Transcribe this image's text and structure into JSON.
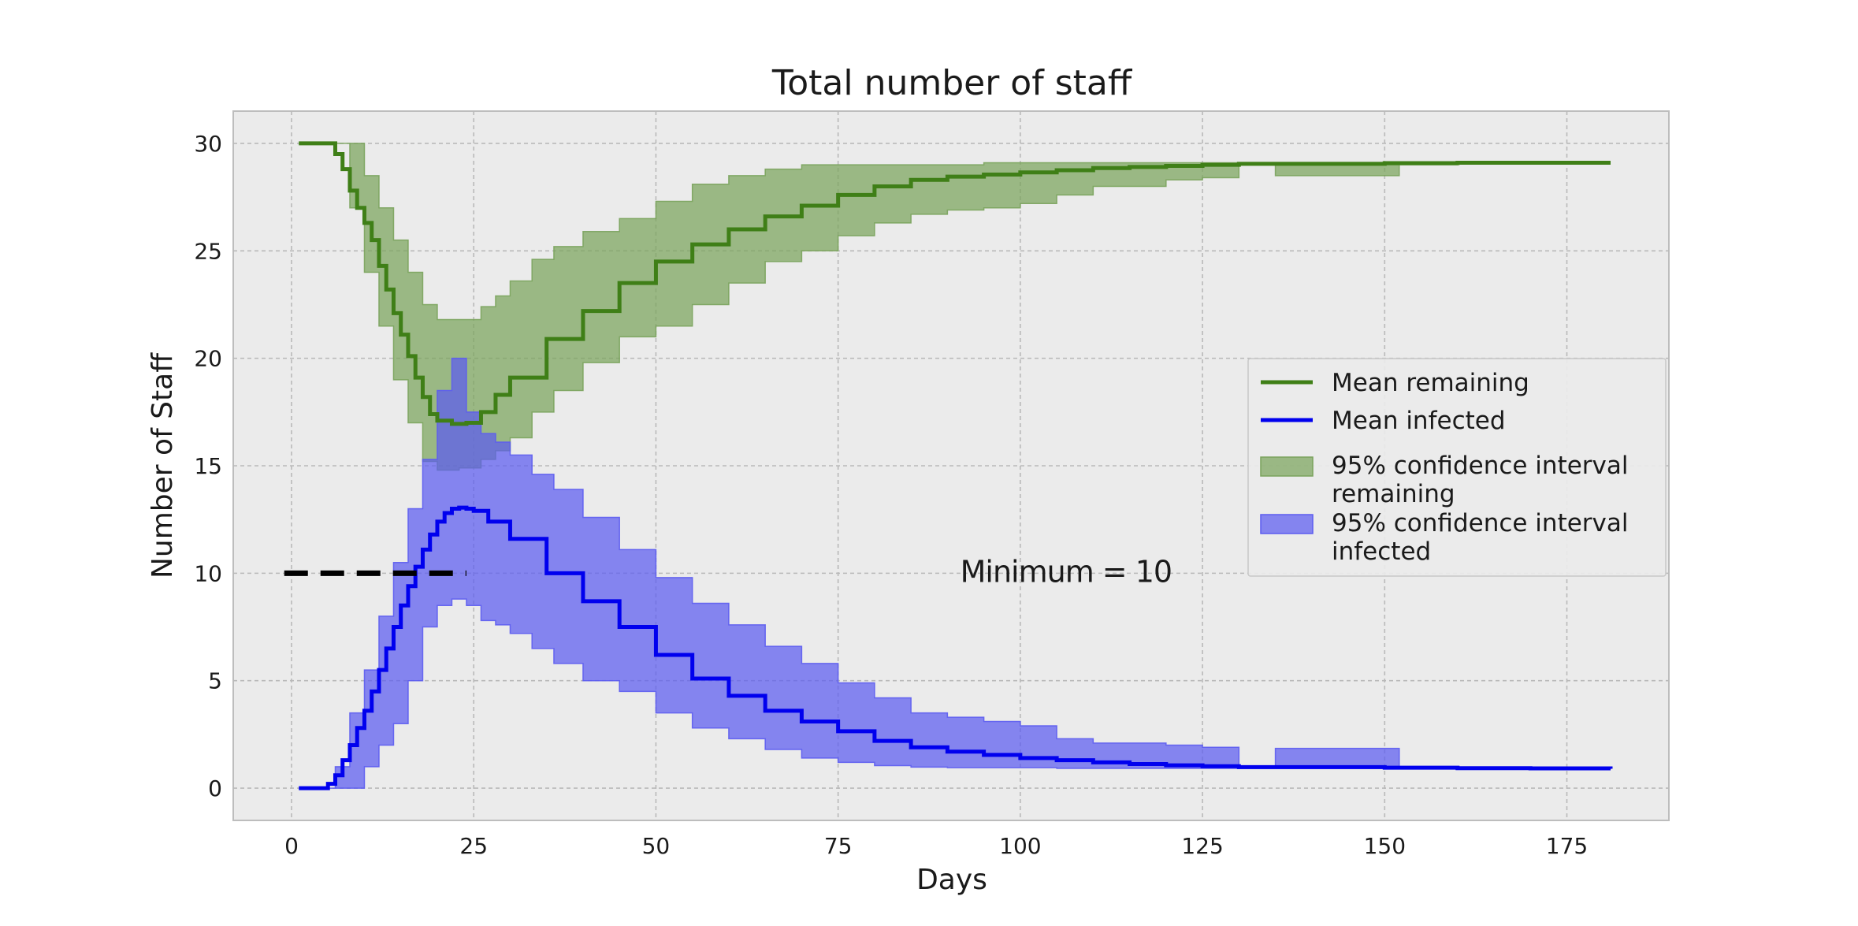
{
  "chart_data": {
    "type": "line",
    "title": "Total number of staff",
    "xlabel": "Days",
    "ylabel": "Number of Staff",
    "xlim": [
      -8,
      189
    ],
    "ylim": [
      -1.5,
      31.5
    ],
    "xticks": [
      0,
      25,
      50,
      75,
      100,
      125,
      150,
      175
    ],
    "yticks": [
      0,
      5,
      10,
      15,
      20,
      25,
      30
    ],
    "grid": true,
    "legend_position": "center-right",
    "legend": [
      {
        "label": "Mean remaining",
        "kind": "line",
        "color": "#3f7f17"
      },
      {
        "label": "Mean infected",
        "kind": "line",
        "color": "#0000ee"
      },
      {
        "label": "95% confidence interval\nremaining",
        "kind": "patch",
        "color": "#7aa35c"
      },
      {
        "label": "95% confidence interval\ninfected",
        "kind": "patch",
        "color": "#5c5cf0"
      }
    ],
    "series": [
      {
        "name": "Mean remaining",
        "color": "#3f7f17",
        "step": true,
        "x": [
          1,
          4,
          6,
          7,
          8,
          9,
          10,
          11,
          12,
          13,
          14,
          15,
          16,
          17,
          18,
          19,
          20,
          22,
          24,
          26,
          28,
          30,
          35,
          40,
          45,
          50,
          55,
          60,
          65,
          70,
          75,
          80,
          85,
          90,
          95,
          100,
          105,
          110,
          115,
          120,
          125,
          130,
          140,
          150,
          160,
          170,
          181
        ],
        "y": [
          30,
          30,
          29.5,
          28.8,
          27.8,
          27,
          26.3,
          25.5,
          24.3,
          23.2,
          22.1,
          21.1,
          20.1,
          19.1,
          18.2,
          17.4,
          17.1,
          16.95,
          17.0,
          17.5,
          18.3,
          19.1,
          20.9,
          22.2,
          23.5,
          24.5,
          25.3,
          26.0,
          26.6,
          27.1,
          27.6,
          28.0,
          28.3,
          28.45,
          28.55,
          28.65,
          28.75,
          28.85,
          28.9,
          28.95,
          29.0,
          29.05,
          29.05,
          29.08,
          29.1,
          29.1,
          29.1
        ]
      },
      {
        "name": "Mean infected",
        "color": "#0000ee",
        "step": true,
        "x": [
          1,
          4,
          5,
          6,
          7,
          8,
          9,
          10,
          11,
          12,
          13,
          14,
          15,
          16,
          17,
          18,
          19,
          20,
          21,
          22,
          23,
          24,
          25,
          27,
          30,
          35,
          40,
          45,
          50,
          55,
          60,
          65,
          70,
          75,
          80,
          85,
          90,
          95,
          100,
          105,
          110,
          115,
          120,
          125,
          130,
          140,
          150,
          160,
          170,
          181
        ],
        "y": [
          0,
          0,
          0.2,
          0.6,
          1.3,
          2.0,
          2.8,
          3.6,
          4.5,
          5.5,
          6.5,
          7.5,
          8.5,
          9.4,
          10.3,
          11.1,
          11.8,
          12.4,
          12.8,
          13.0,
          13.05,
          13.0,
          12.9,
          12.4,
          11.6,
          10.0,
          8.7,
          7.5,
          6.2,
          5.1,
          4.3,
          3.6,
          3.1,
          2.65,
          2.2,
          1.9,
          1.7,
          1.55,
          1.4,
          1.3,
          1.2,
          1.12,
          1.06,
          1.02,
          0.98,
          0.98,
          0.95,
          0.93,
          0.92,
          0.9
        ]
      },
      {
        "name": "95% confidence interval\nremaining",
        "color": "#7aa35c",
        "band": true,
        "x": [
          6,
          8,
          10,
          12,
          14,
          16,
          18,
          20,
          23,
          26,
          28,
          30,
          33,
          36,
          40,
          45,
          50,
          55,
          60,
          65,
          70,
          75,
          80,
          85,
          90,
          95,
          100,
          105,
          110,
          120,
          125,
          130,
          135,
          140,
          145,
          150,
          152,
          160,
          181
        ],
        "lower": [
          30,
          27,
          24,
          21.5,
          19,
          17,
          15.2,
          14.8,
          14.9,
          15.3,
          15.7,
          16.3,
          17.5,
          18.5,
          19.8,
          21,
          21.5,
          22.5,
          23.5,
          24.5,
          25,
          25.7,
          26.3,
          26.7,
          26.9,
          27.0,
          27.2,
          27.6,
          28.0,
          28.3,
          28.4,
          29,
          28.5,
          28.5,
          28.5,
          28.5,
          29,
          29.1,
          29.1
        ],
        "upper": [
          30,
          30,
          28.5,
          27,
          25.5,
          24,
          22.5,
          21.8,
          21.8,
          22.4,
          22.9,
          23.6,
          24.6,
          25.2,
          25.9,
          26.5,
          27.3,
          28.1,
          28.5,
          28.8,
          29.0,
          29.0,
          29.0,
          29.0,
          29.0,
          29.1,
          29.1,
          29.1,
          29.1,
          29.1,
          29.1,
          29.0,
          29.0,
          29.0,
          29.0,
          29.0,
          29.1,
          29.1,
          29.1
        ]
      },
      {
        "name": "95% confidence interval\ninfected",
        "color": "#5c5cf0",
        "band": true,
        "x": [
          4,
          6,
          8,
          10,
          12,
          14,
          16,
          18,
          20,
          22,
          24,
          26,
          28,
          30,
          33,
          36,
          40,
          45,
          50,
          55,
          60,
          65,
          70,
          75,
          80,
          85,
          90,
          95,
          100,
          105,
          110,
          120,
          125,
          130,
          135,
          140,
          145,
          150,
          152,
          160,
          181
        ],
        "lower": [
          0,
          0,
          0,
          1,
          2,
          3,
          5,
          7.5,
          8.5,
          8.8,
          8.5,
          7.8,
          7.6,
          7.2,
          6.5,
          5.8,
          5.0,
          4.5,
          3.5,
          2.8,
          2.3,
          1.8,
          1.4,
          1.2,
          1.05,
          0.98,
          0.95,
          0.95,
          0.95,
          0.92,
          0.92,
          0.92,
          0.92,
          0.92,
          0.92,
          0.92,
          0.92,
          0.92,
          0.92,
          0.92,
          0.92
        ],
        "upper": [
          0,
          1,
          3.5,
          5.5,
          8,
          10.5,
          13,
          15.3,
          18.5,
          20,
          17.5,
          16.5,
          16.1,
          15.5,
          14.6,
          13.9,
          12.6,
          11.1,
          9.8,
          8.6,
          7.6,
          6.6,
          5.8,
          4.9,
          4.2,
          3.5,
          3.3,
          3.1,
          2.9,
          2.3,
          2.1,
          2.0,
          1.9,
          1.0,
          1.85,
          1.85,
          1.85,
          1.85,
          0.98,
          0.95,
          0.92
        ]
      }
    ],
    "threshold": {
      "y": 10,
      "x_start": -1,
      "x_end": 24,
      "style": "dashed",
      "color": "#000000"
    },
    "annotation": {
      "text": "Minimum = 10",
      "x": 87,
      "y": 10.1
    }
  }
}
